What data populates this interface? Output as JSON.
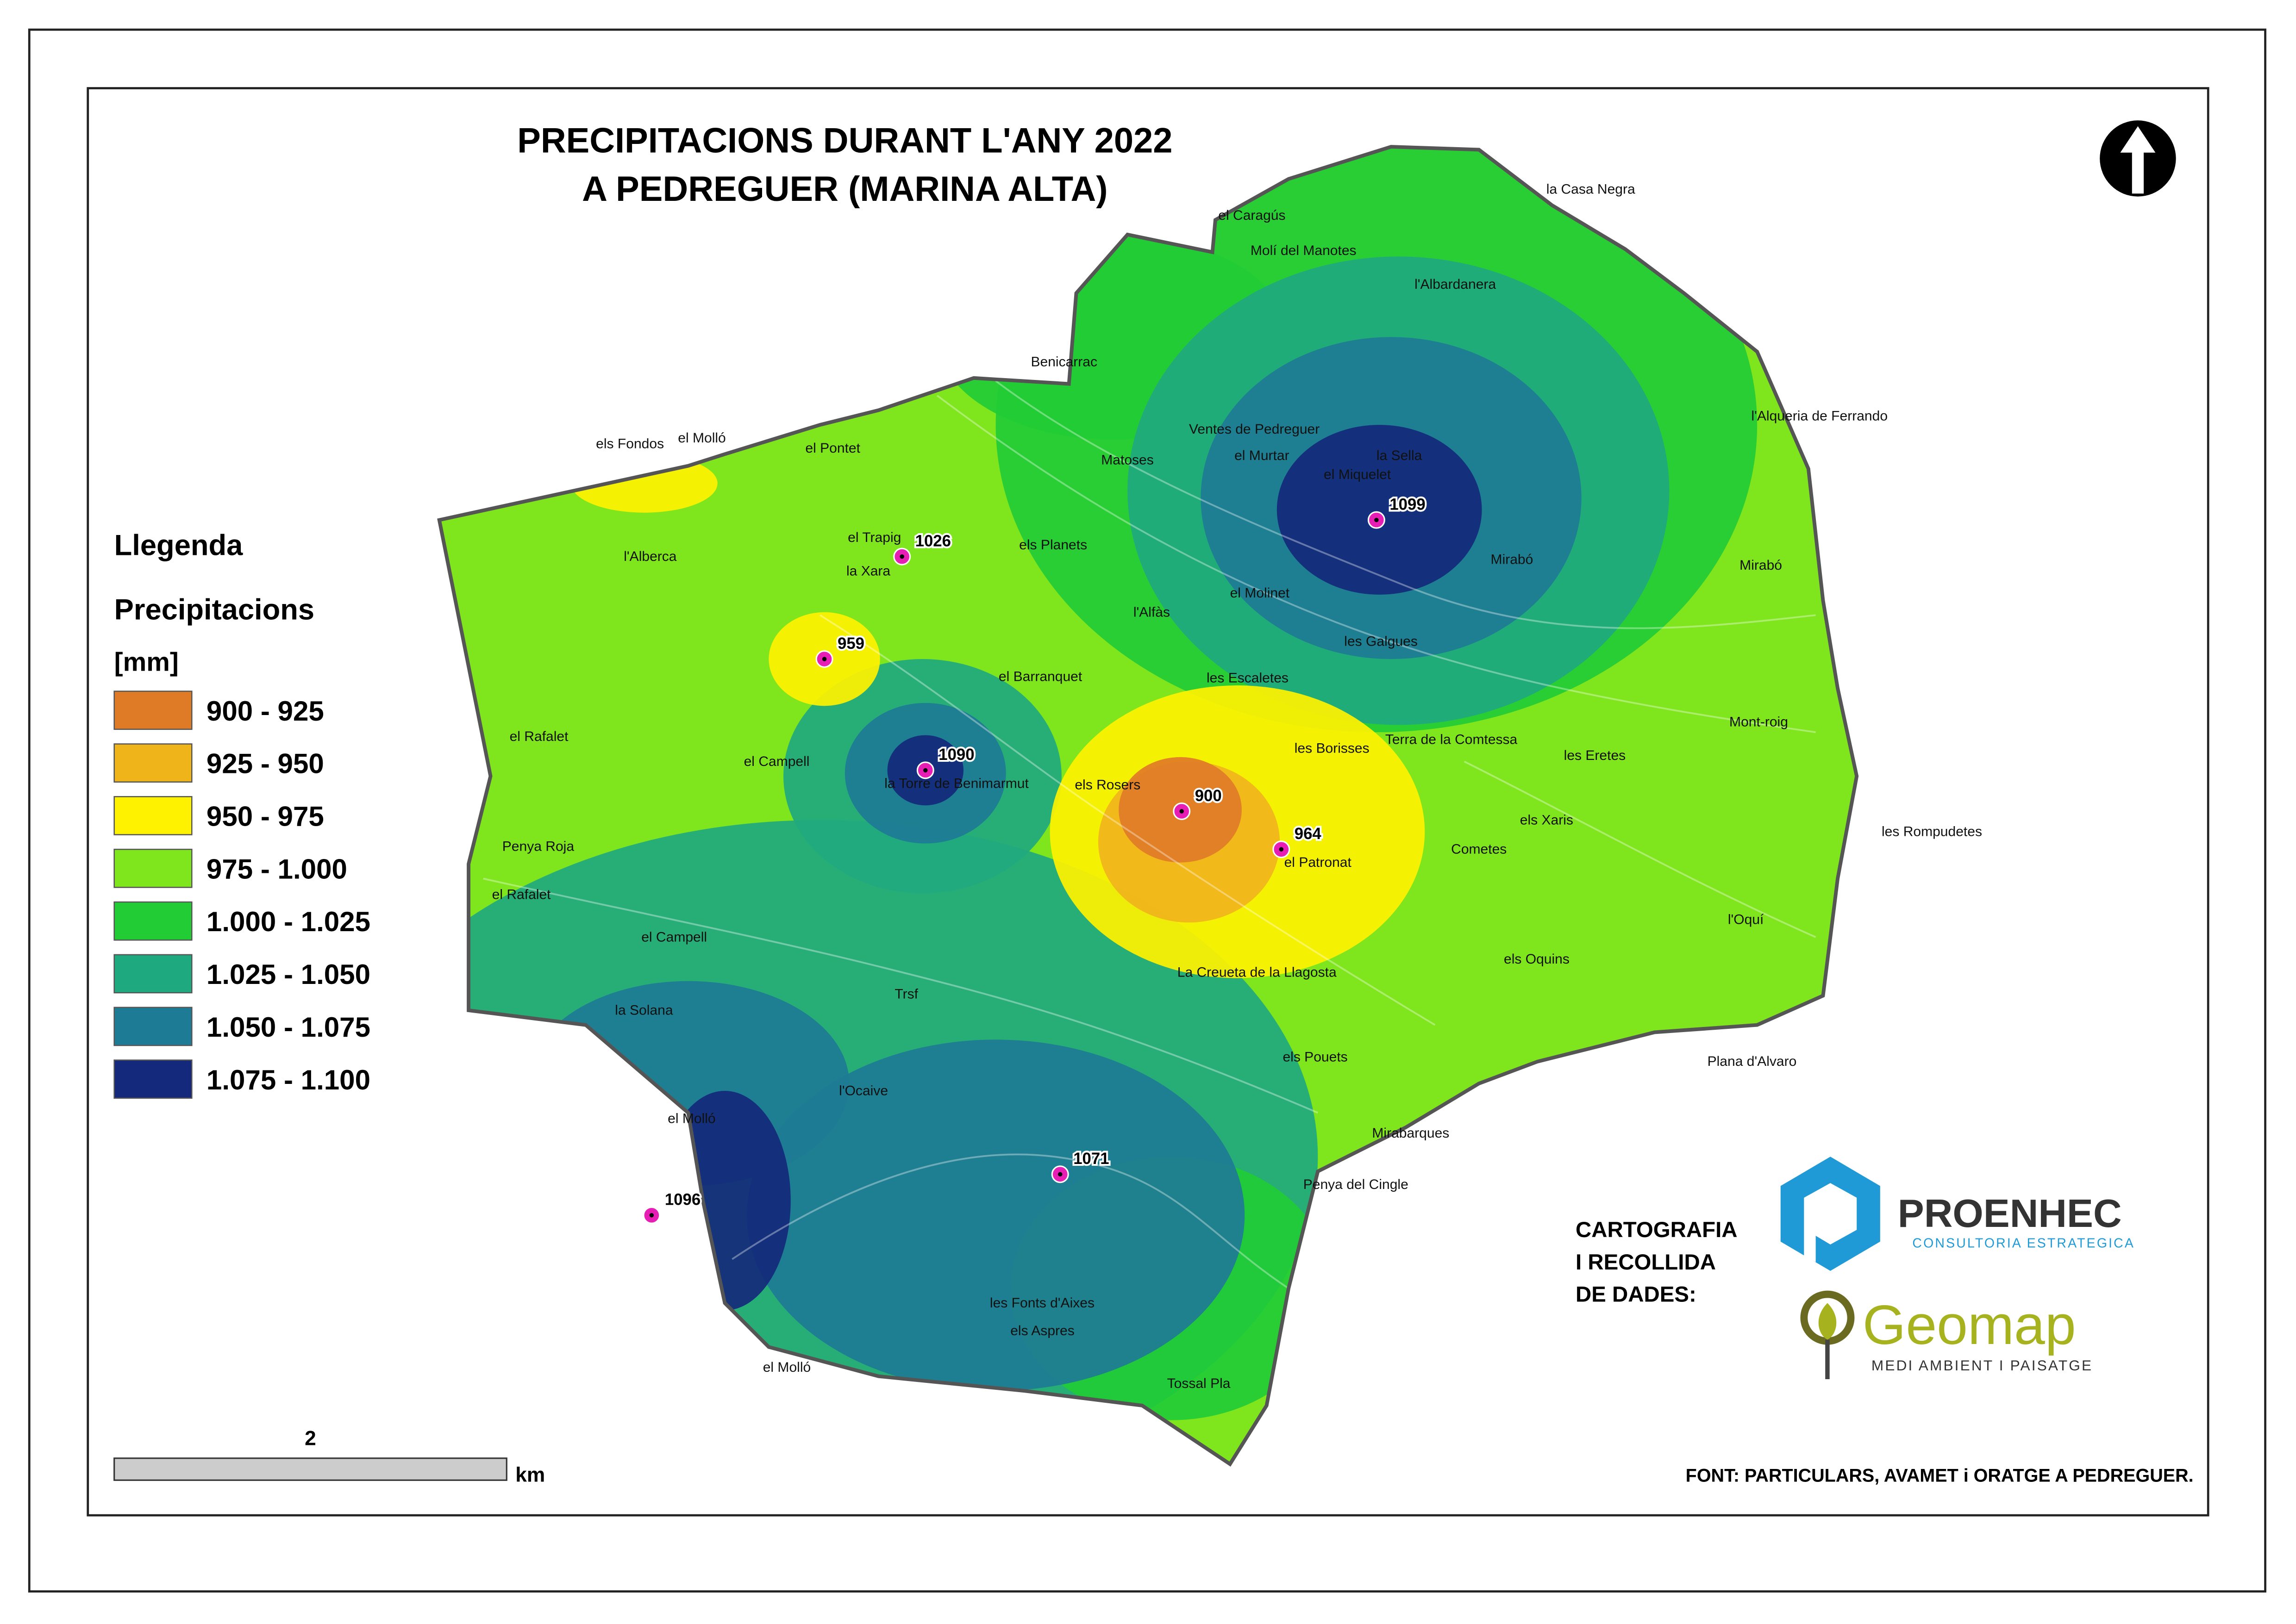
{
  "title": [
    "PRECIPITACIONS DURANT L'ANY 2022",
    "A PEDREGUER (MARINA ALTA)"
  ],
  "legend": {
    "title": "Llegenda",
    "subtitle": "Precipitacions",
    "unit": "[mm]",
    "classes": [
      {
        "label": "900 - 925",
        "color": "#df7b27"
      },
      {
        "label": "925 - 950",
        "color": "#f0b41b"
      },
      {
        "label": "950 - 975",
        "color": "#fff200"
      },
      {
        "label": "975 - 1.000",
        "color": "#7fe51c"
      },
      {
        "label": "1.000 - 1.025",
        "color": "#21cc35"
      },
      {
        "label": "1.025 - 1.050",
        "color": "#1fa97f"
      },
      {
        "label": "1.050 - 1.075",
        "color": "#1e7b95"
      },
      {
        "label": "1.075 - 1.100",
        "color": "#14297b"
      }
    ]
  },
  "stations": [
    1026,
    1099,
    959,
    1090,
    900,
    964,
    1071,
    1096
  ],
  "places": [
    "la Casa Negra",
    "el Caragús",
    "Molí del Manotes",
    "l'Albardanera",
    "Benicarrac",
    "l'Alqueria de Ferrando",
    "els Fondos",
    "el Molló",
    "el Pontet",
    "Ventes de Pedreguer",
    "Matoses",
    "el Murtar",
    "la Sella",
    "el Miquelet",
    "el Trapig",
    "la Xara",
    "els Planets",
    "l'Alberca",
    "Mirabó",
    "Mirabó",
    "el Molinet",
    "l'Alfàs",
    "les Galgues",
    "el Barranquet",
    "les Escaletes",
    "el Rafalet",
    "Terra de la Comtessa",
    "les Borisses",
    "Mont-roig",
    "les Eretes",
    "el Campell",
    "la Torre de Benimarmut",
    "els Rosers",
    "els Xaris",
    "les Rompudetes",
    "Penya Roja",
    "Cometes",
    "el Patronat",
    "el Rafalet",
    "l'Oquí",
    "el Campell",
    "els Oquins",
    "La Creueta de la Llagosta",
    "Trsf",
    "la Solana",
    "els Pouets",
    "Plana d'Alvaro",
    "l'Ocaive",
    "el  Molló",
    "Mirabarques",
    "Penya del Cingle",
    "les Fonts d'Aixes",
    "els Aspres",
    "el Molló",
    "Tossal Pla"
  ],
  "scale": {
    "distance": "2",
    "unit": "km"
  },
  "credits": {
    "heading": [
      "CARTOGRAFIA",
      "I RECOLLIDA",
      "DE DADES:"
    ],
    "logos": [
      {
        "name": "PROENHEC",
        "tagline": "CONSULTORIA ESTRATEGICA"
      },
      {
        "name": "Geomap",
        "tagline": "MEDI AMBIENT I PAISATGE"
      }
    ]
  },
  "source": "FONT: PARTICULARS, AVAMET i ORATGE A PEDREGUER."
}
